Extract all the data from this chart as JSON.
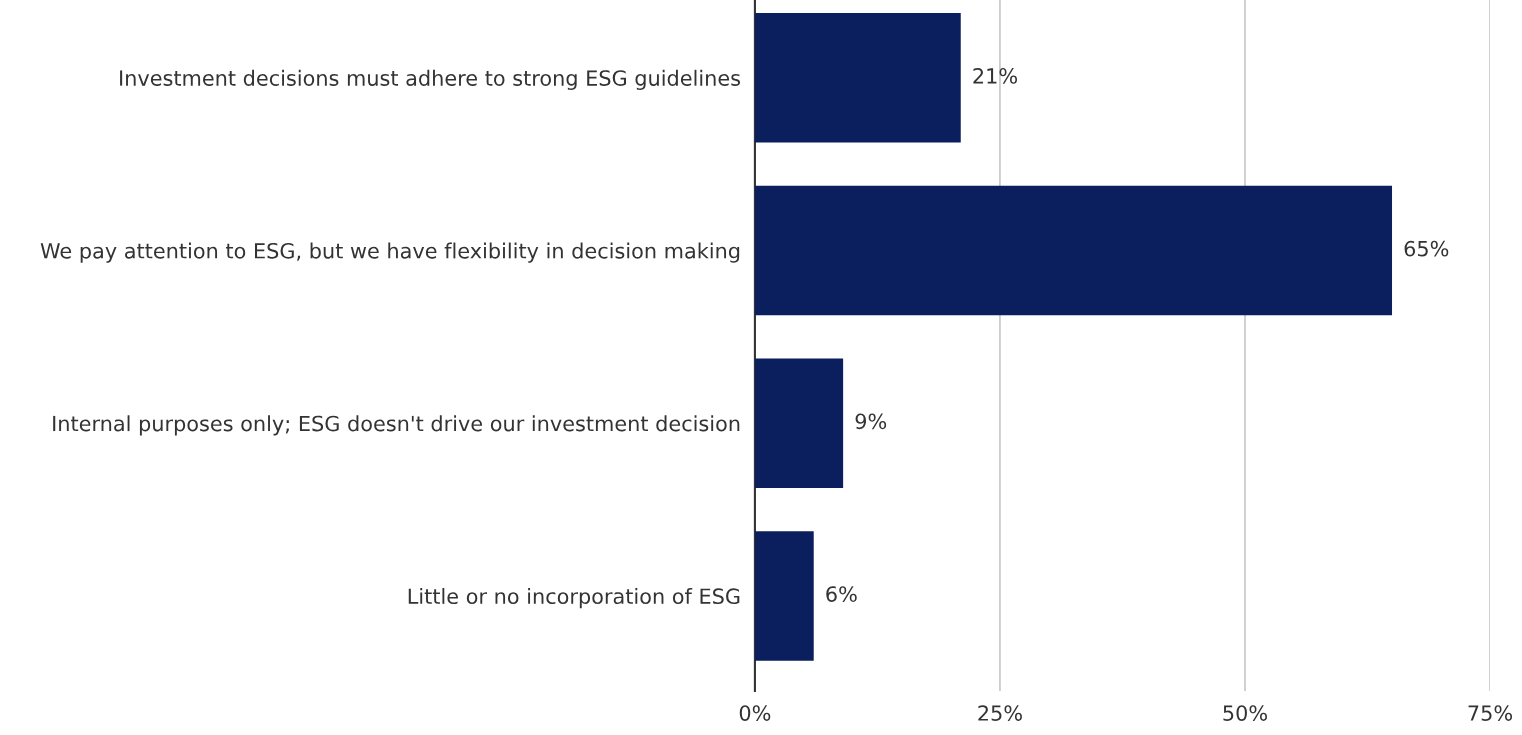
{
  "chart_data": {
    "type": "bar",
    "orientation": "horizontal",
    "categories": [
      "Investment decisions must adhere to strong ESG guidelines",
      "We pay attention to ESG, but we have flexibility in decision making",
      "Internal purposes only; ESG doesn't drive our investment decision",
      "Little or no incorporation of ESG"
    ],
    "values": [
      21,
      65,
      9,
      6
    ],
    "value_labels": [
      "21%",
      "65%",
      "9%",
      "6%"
    ],
    "color": "#0b1f5e",
    "xlim": [
      0,
      75
    ],
    "xticks": [
      {
        "value": 0,
        "label": "0%"
      },
      {
        "value": 25,
        "label": "25%"
      },
      {
        "value": 50,
        "label": "50%"
      },
      {
        "value": 75,
        "label": "75%"
      }
    ],
    "grid": "x",
    "legend": false
  }
}
